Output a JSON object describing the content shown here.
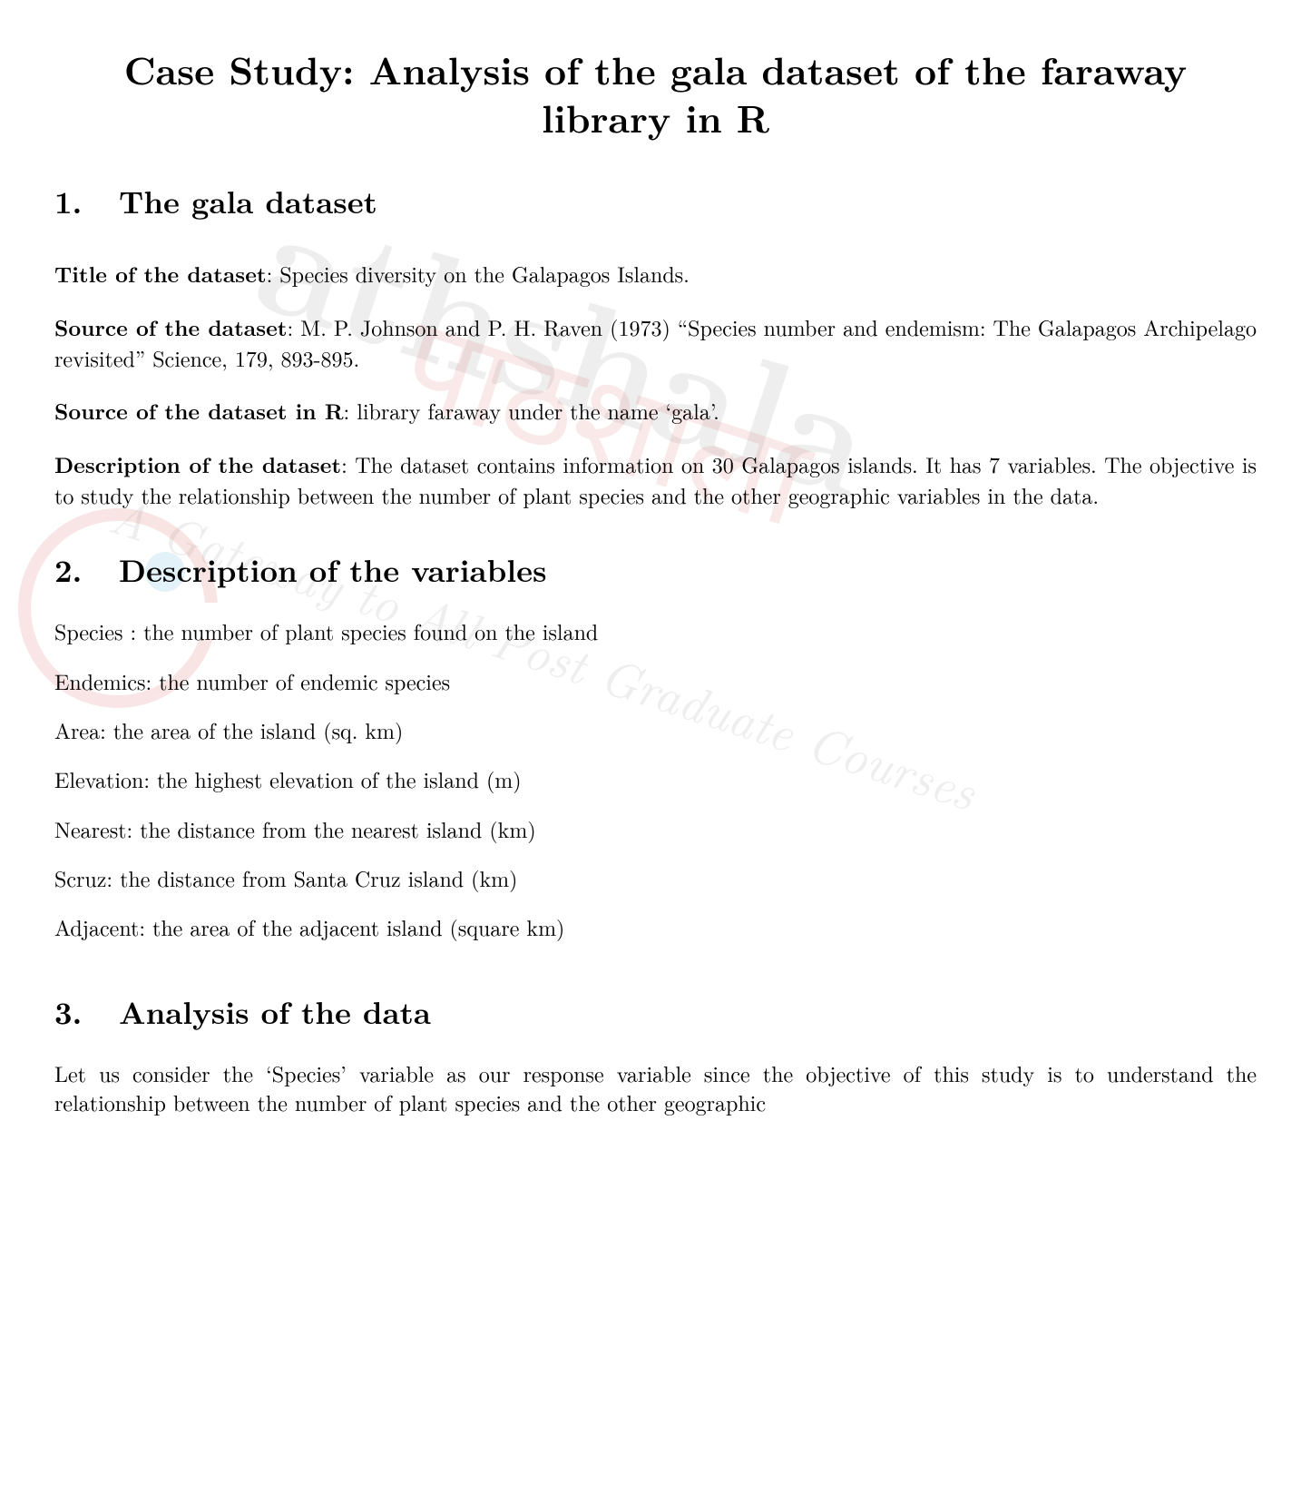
{
  "title": "Case Study: Analysis of the gala dataset of the faraway library in R",
  "sections": {
    "s1": {
      "num": "1.",
      "heading": "The gala dataset"
    },
    "s2": {
      "num": "2.",
      "heading": "Description of the variables"
    },
    "s3": {
      "num": "3.",
      "heading": "Analysis of the data"
    }
  },
  "dataset": {
    "title_label": "Title of the dataset",
    "title_value": ": Species diversity on the Galapagos Islands.",
    "source_label": "Source of the dataset",
    "source_value": ": M. P. Johnson and P. H. Raven (1973) “Species number and endemism: The Galapagos Archipelago revisited” Science, 179, 893-895.",
    "sourceR_label": "Source of the dataset in R",
    "sourceR_value": ": library faraway under the name ‘gala’.",
    "desc_label": "Description of the dataset",
    "desc_value": ": The dataset contains information on 30 Galapagos islands. It has 7 variables. The objective is to study the relationship between the number of plant species and the other geographic variables in the data."
  },
  "variables": [
    "Species : the number of plant species found on the island",
    "Endemics: the number of endemic species",
    "Area: the area of the island (sq. km)",
    "Elevation: the highest elevation of the island (m)",
    "Nearest: the distance from the nearest island (km)",
    "Scruz: the distance from Santa Cruz island (km)",
    "Adjacent: the area of the adjacent island (square km)"
  ],
  "analysis_para": "Let us consider the ‘Species’ variable as our response variable since the objective of this study is to understand the relationship between the number of plant species and the other geographic",
  "watermark": {
    "text1": "athshala",
    "text2": "पाठशाला",
    "tagline": "A Gateway to All Post Graduate Courses"
  }
}
